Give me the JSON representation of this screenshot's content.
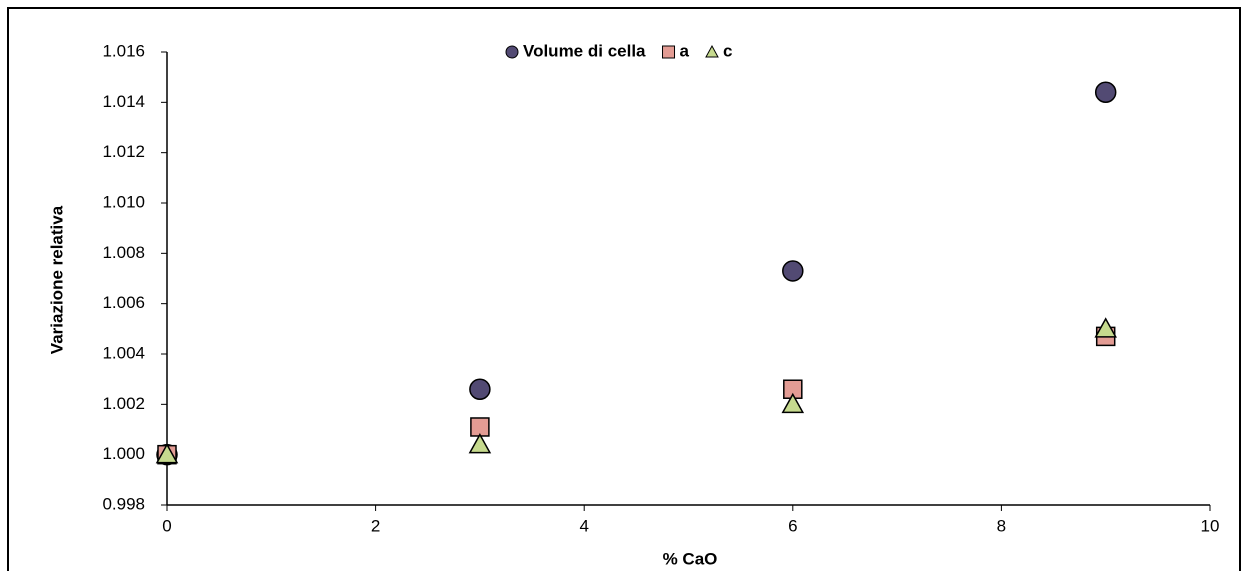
{
  "chart_data": {
    "type": "scatter",
    "x_label": "% CaO",
    "y_label": "Variazione relativa",
    "xlim": [
      0,
      10
    ],
    "xticks": [
      0,
      2,
      4,
      6,
      8,
      10
    ],
    "ylim": [
      0.998,
      1.016
    ],
    "yticks": [
      0.998,
      {
        "value": 1.0,
        "label": "1.000"
      },
      1.002,
      1.004,
      1.006,
      1.008,
      {
        "value": 1.01,
        "label": "1.010"
      },
      1.012,
      1.014,
      1.016
    ],
    "legend": "top",
    "series": [
      {
        "name": "Volume di cella",
        "color": "#524a73",
        "marker": "circle",
        "x": [
          0,
          3,
          6,
          9
        ],
        "values": [
          1.0,
          1.0026,
          1.0073,
          1.0144
        ]
      },
      {
        "name": "a",
        "color": "#e39c94",
        "marker": "square",
        "x": [
          0,
          3,
          6,
          9
        ],
        "values": [
          1.0,
          1.0011,
          1.0026,
          1.0047
        ]
      },
      {
        "name": "c",
        "color": "#c6da8e",
        "marker": "triangle",
        "x": [
          0,
          3,
          6,
          9
        ],
        "values": [
          1.0,
          1.0004,
          1.002,
          1.005
        ]
      }
    ]
  }
}
